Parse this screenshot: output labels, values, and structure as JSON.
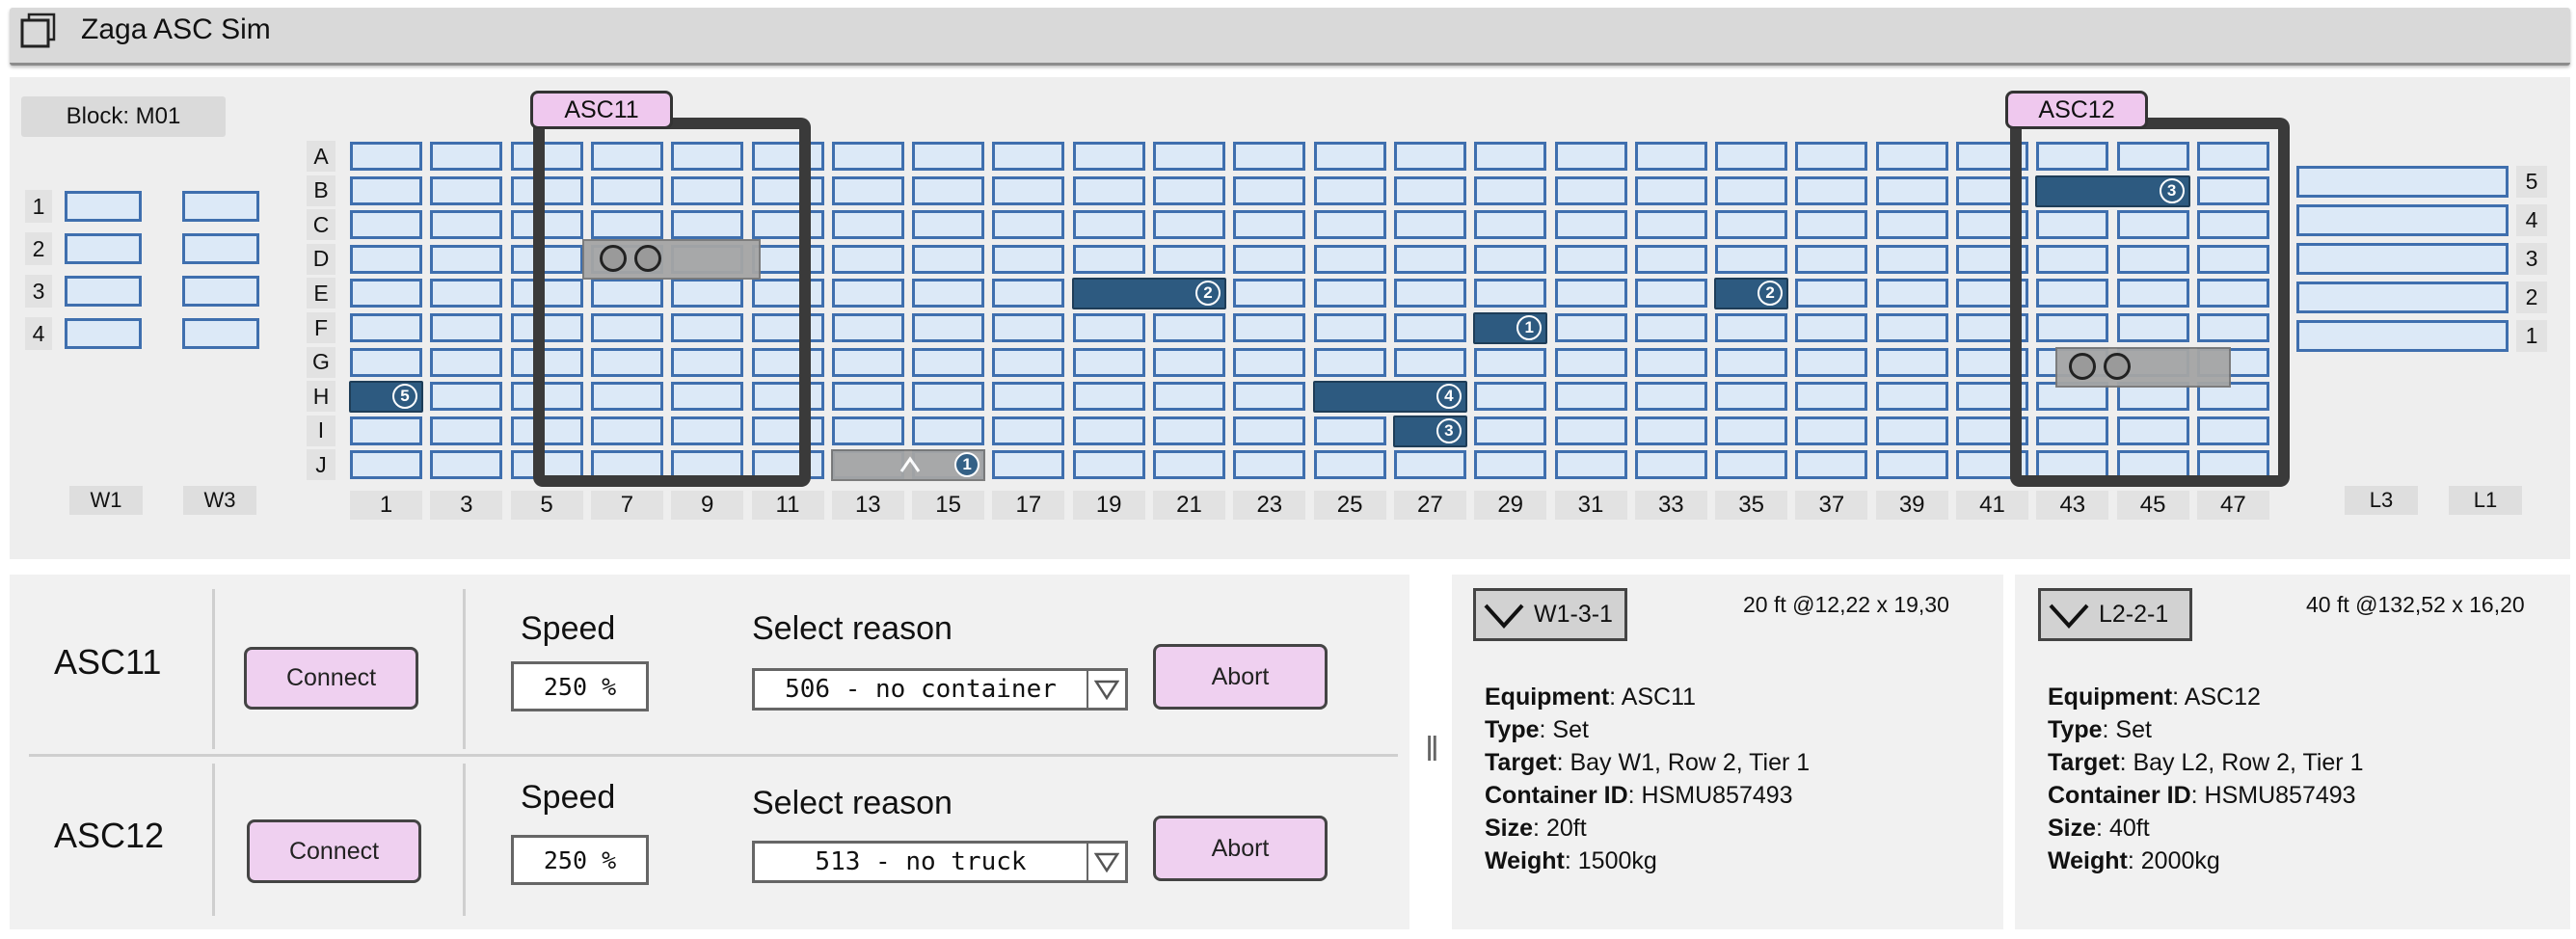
{
  "app": {
    "title": "Zaga ASC Sim"
  },
  "yard": {
    "block_label": "Block: M01",
    "rows": [
      "A",
      "B",
      "C",
      "D",
      "E",
      "F",
      "G",
      "H",
      "I",
      "J"
    ],
    "bay_labels": [
      "1",
      "3",
      "5",
      "7",
      "9",
      "11",
      "13",
      "15",
      "17",
      "19",
      "21",
      "23",
      "25",
      "27",
      "29",
      "31",
      "33",
      "35",
      "37",
      "39",
      "41",
      "43",
      "45",
      "47"
    ],
    "waterside": {
      "row_labels": [
        "1",
        "2",
        "3",
        "4"
      ],
      "lane_labels": [
        "W1",
        "W3"
      ]
    },
    "landside": {
      "row_labels": [
        "5",
        "4",
        "3",
        "2",
        "1"
      ],
      "lane_labels": [
        "L3",
        "L1"
      ]
    },
    "cranes": [
      {
        "name": "ASC11"
      },
      {
        "name": "ASC12"
      }
    ],
    "containers": [
      {
        "row": "H",
        "bay_start": 0,
        "length": 1,
        "tier": "5"
      },
      {
        "row": "E",
        "bay_start": 9,
        "length": 2,
        "tier": "2"
      },
      {
        "row": "H",
        "bay_start": 12,
        "length": 2,
        "tier": "4"
      },
      {
        "row": "I",
        "bay_start": 13,
        "length": 1,
        "tier": "3"
      },
      {
        "row": "F",
        "bay_start": 14,
        "length": 1,
        "tier": "1"
      },
      {
        "row": "E",
        "bay_start": 17,
        "length": 1,
        "tier": "2"
      },
      {
        "row": "B",
        "bay_start": 21,
        "length": 2,
        "tier": "3"
      },
      {
        "row": "J",
        "bay_start": 6,
        "length": 2,
        "tier": "1",
        "moving": true
      }
    ]
  },
  "controls": [
    {
      "name": "ASC11",
      "connect_label": "Connect",
      "speed_label": "Speed",
      "speed_value": "250 %",
      "reason_label": "Select reason",
      "reason_value": "506 - no container",
      "abort_label": "Abort"
    },
    {
      "name": "ASC12",
      "connect_label": "Connect",
      "speed_label": "Speed",
      "speed_value": "250 %",
      "reason_label": "Select reason",
      "reason_value": "513 - no truck",
      "abort_label": "Abort"
    }
  ],
  "splitter_glyph": "‖",
  "jobs": [
    {
      "tag": "W1-3-1",
      "coords": "20 ft @12,22 x 19,30",
      "equipment": "ASC11",
      "type": "Set",
      "target": "Bay W1, Row 2, Tier 1",
      "container_id": "HSMU857493",
      "size": "20ft",
      "weight": "1500kg"
    },
    {
      "tag": "L2-2-1",
      "coords": "40 ft @132,52 x 16,20",
      "equipment": "ASC12",
      "type": "Set",
      "target": "Bay L2, Row 2, Tier 1",
      "container_id": "HSMU857493",
      "size": "40ft",
      "weight": "2000kg"
    }
  ],
  "field_labels": {
    "equipment": "Equipment",
    "type": "Type",
    "target": "Target",
    "container_id": "Container ID",
    "size": "Size",
    "weight": "Weight"
  },
  "colors": {
    "slot_fill": "#dce9f7",
    "slot_border": "#3f6fae",
    "container": "#2d5a80",
    "button": "#efd0f0",
    "crane_frame": "#3a3a3a"
  }
}
